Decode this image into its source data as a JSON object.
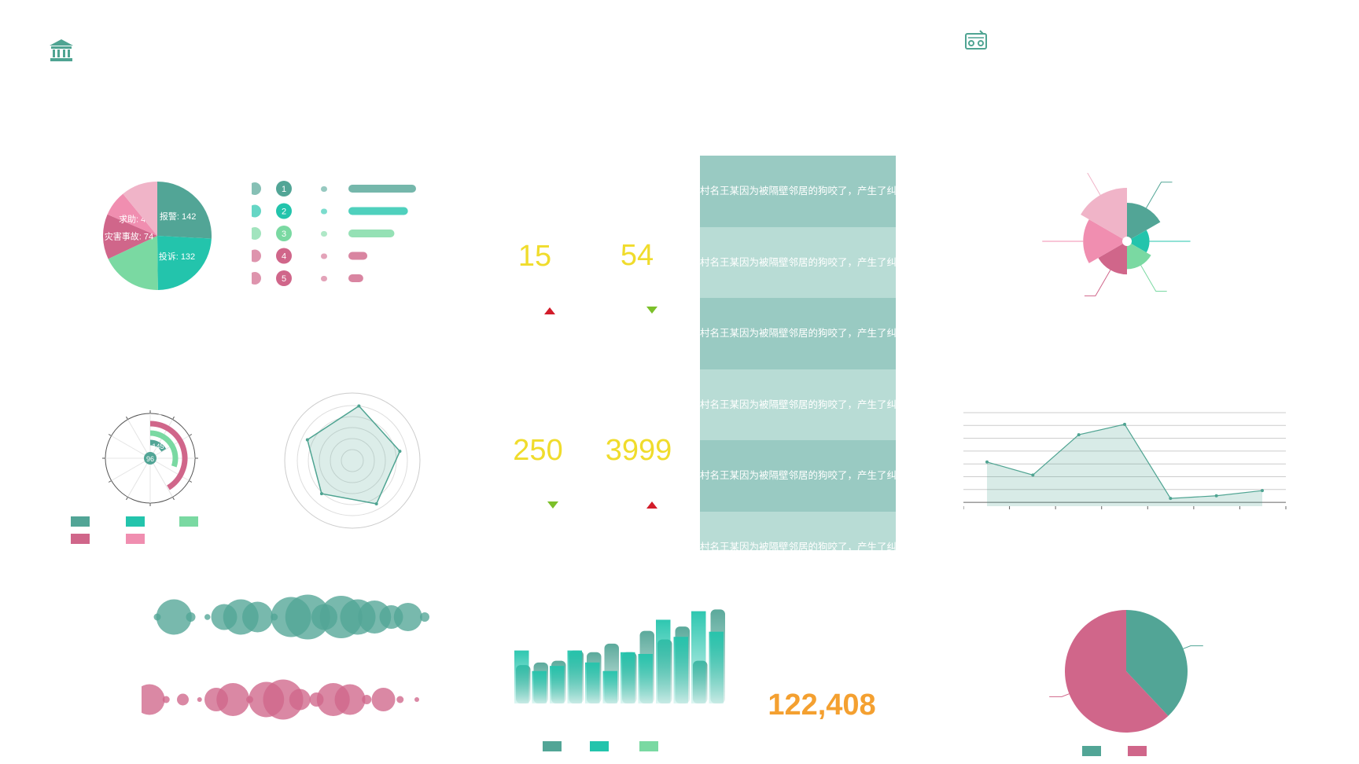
{
  "header": {
    "left_icon": "bank-icon",
    "right_icon": "radio-icon",
    "accent": "#4fa492"
  },
  "colors": {
    "teal_dark": "#52a596",
    "teal": "#23c4ac",
    "mint": "#7ad9a2",
    "rose": "#d0668a",
    "pink": "#f08eb0",
    "light_pink": "#f0b4c8",
    "yellow": "#f0dc2c",
    "orange": "#f4a030",
    "up_red": "#d21c2a",
    "down_green": "#7cc02a"
  },
  "pie_chart": {
    "type": "pie",
    "series": [
      {
        "name": "报警",
        "value": 142,
        "label": "报警: 142"
      },
      {
        "name": "投诉",
        "value": 132,
        "label": "投诉: 132"
      },
      {
        "name": "",
        "value": 100,
        "label": ""
      },
      {
        "name": "灾害事故",
        "value": 74,
        "label": "灾害事故: 74"
      },
      {
        "name": "求助",
        "value": 42,
        "label": "求助: 42"
      },
      {
        "name": "",
        "value": 60,
        "label": ""
      }
    ]
  },
  "rank_list": {
    "items": [
      {
        "rank": "1",
        "value": 1.0
      },
      {
        "rank": "2",
        "value": 0.88
      },
      {
        "rank": "3",
        "value": 0.68
      },
      {
        "rank": "4",
        "value": 0.28
      },
      {
        "rank": "5",
        "value": 0.22
      }
    ]
  },
  "stats": [
    {
      "value": "15",
      "trend": "up"
    },
    {
      "value": "54",
      "trend": "down"
    },
    {
      "value": "250",
      "trend": "down"
    },
    {
      "value": "3999",
      "trend": "up"
    }
  ],
  "news": {
    "rows": [
      "村名王某因为被隔壁邻居的狗咬了，产生了纠纷",
      "村名王某因为被隔壁邻居的狗咬了，产生了纠纷",
      "村名王某因为被隔壁邻居的狗咬了，产生了纠纷",
      "村名王某因为被隔壁邻居的狗咬了，产生了纠纷",
      "村名王某因为被隔壁邻居的狗咬了，产生了纠纷",
      "村名王某因为被隔壁邻居的狗咬了，产生了纠纷"
    ]
  },
  "chart_data": [
    {
      "type": "pie",
      "categories": [
        "报警",
        "投诉",
        "",
        "灾害事故",
        "求助",
        ""
      ],
      "values": [
        142,
        132,
        100,
        74,
        42,
        60
      ]
    },
    {
      "type": "bar",
      "subtype": "radial",
      "labels": [
        "A",
        "145",
        "96"
      ],
      "values": [
        0.75,
        0.55,
        0.3
      ]
    },
    {
      "type": "radar",
      "values": [
        1.0,
        0.88,
        0.9,
        0.82,
        0.9
      ],
      "max": 1.0
    },
    {
      "type": "scatter",
      "subtype": "bubble",
      "series": [
        {
          "name": "",
          "sizes": [
            6,
            30,
            8,
            5,
            22,
            30,
            26,
            6,
            34,
            38,
            22,
            36,
            30,
            28,
            20,
            24,
            8
          ]
        },
        {
          "name": "",
          "sizes": [
            26,
            6,
            10,
            4,
            20,
            28,
            6,
            30,
            34,
            18,
            12,
            28,
            26,
            8,
            20,
            6,
            4
          ]
        }
      ]
    },
    {
      "type": "bar",
      "series": [
        {
          "name": "",
          "values": [
            45,
            48,
            50,
            62,
            60,
            70,
            60,
            85,
            75,
            90,
            50,
            110
          ]
        },
        {
          "name": "",
          "values": [
            62,
            38,
            44,
            62,
            48,
            38,
            60,
            58,
            98,
            78,
            108,
            84
          ]
        }
      ],
      "ylim": [
        0,
        115
      ]
    },
    {
      "type": "area",
      "values": [
        34,
        24,
        55,
        63,
        6,
        8,
        12
      ],
      "ylim": [
        0,
        75
      ]
    },
    {
      "type": "pie",
      "subtype": "rose",
      "values": [
        0.72,
        0.42,
        0.52,
        0.62,
        0.82,
        1.0
      ]
    },
    {
      "type": "pie",
      "values": [
        38,
        62
      ]
    }
  ],
  "total": {
    "value": "122,408"
  }
}
